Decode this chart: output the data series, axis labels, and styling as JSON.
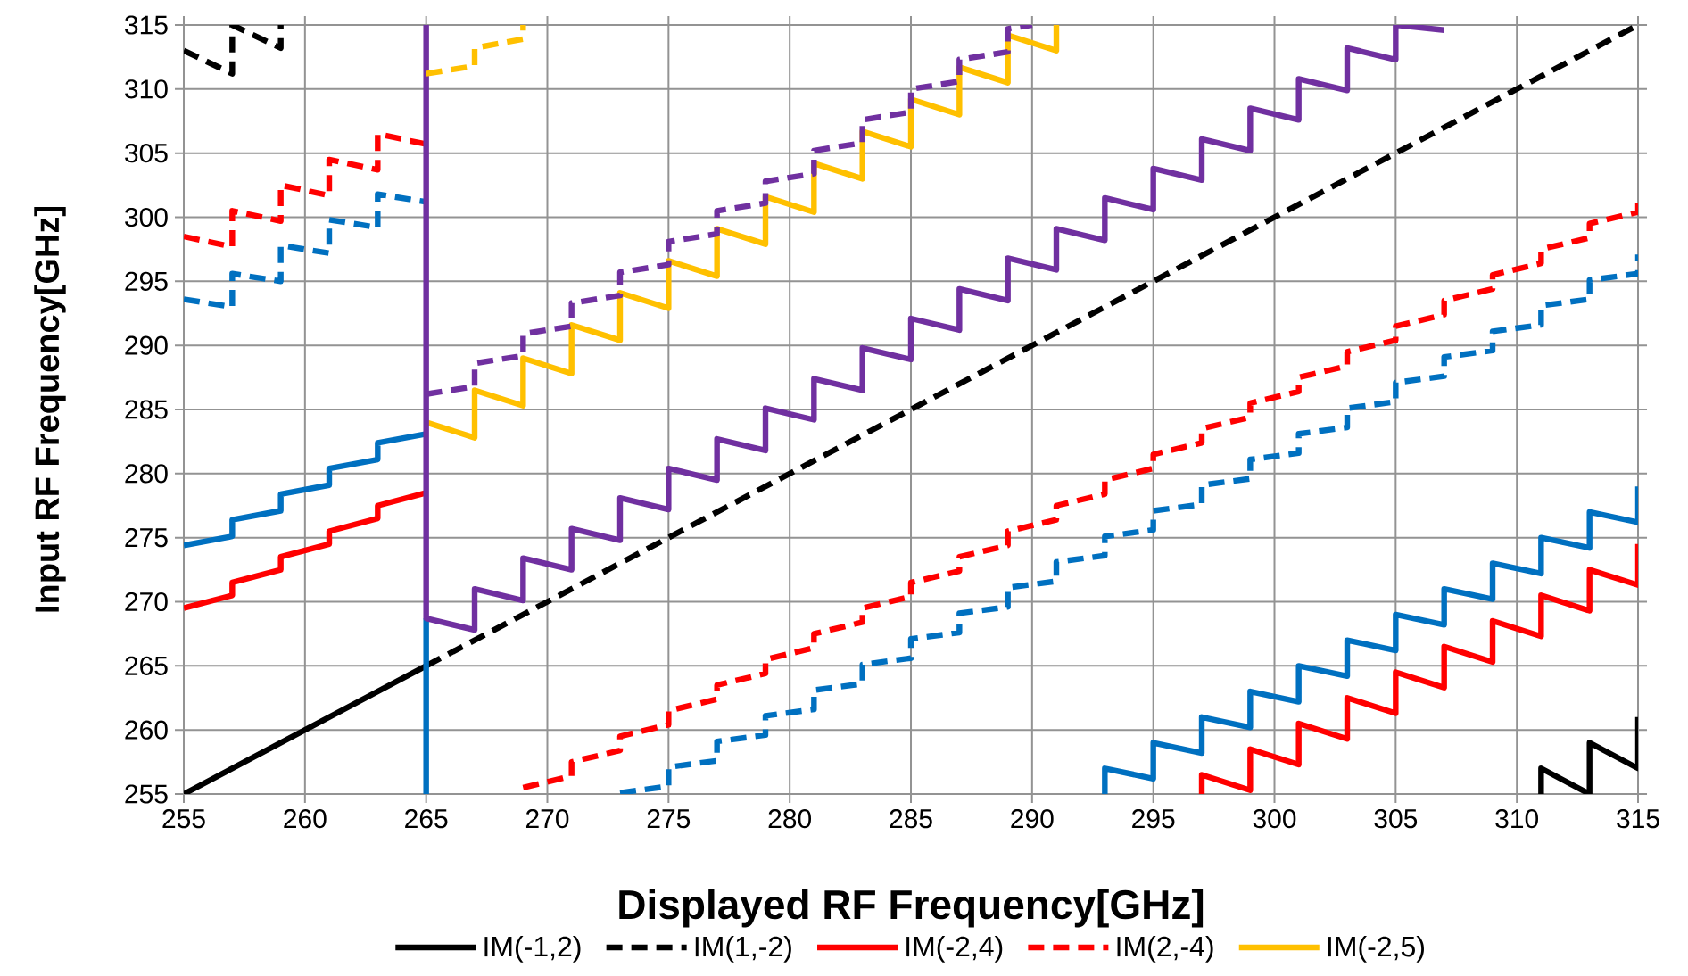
{
  "chart_data": {
    "type": "line",
    "xlabel": "Displayed RF Frequency[GHz]",
    "ylabel": "Input RF Frequency[GHz]",
    "xlim": [
      255,
      315
    ],
    "ylim": [
      255,
      315
    ],
    "xticks": [
      255,
      260,
      265,
      270,
      275,
      280,
      285,
      290,
      295,
      300,
      305,
      310,
      315
    ],
    "yticks": [
      255,
      260,
      265,
      270,
      275,
      280,
      285,
      290,
      295,
      300,
      305,
      310,
      315
    ],
    "grid": true,
    "legend": "bottom",
    "series": [
      {
        "name": "IM(-1,2)",
        "color": "#000000",
        "line_style": "solid",
        "x": [
          255,
          265,
          null,
          311,
          311,
          313,
          313,
          315,
          315
        ],
        "values": [
          255,
          265,
          null,
          255,
          257,
          255,
          259,
          257,
          261
        ]
      },
      {
        "name": "IM(1,-2)",
        "color": "#000000",
        "line_style": "dashed",
        "x": [
          255,
          257,
          257,
          259,
          259,
          null,
          265,
          315
        ],
        "values": [
          313.0,
          311.2,
          315,
          313.2,
          315,
          null,
          265,
          315
        ]
      },
      {
        "name": "IM(-2,4)",
        "color": "#ff0000",
        "line_style": "solid",
        "x": [
          255,
          257,
          257,
          259,
          259,
          261,
          261,
          263,
          263,
          265,
          null,
          297,
          297,
          299,
          299,
          301,
          301,
          303,
          303,
          305,
          305,
          307,
          307,
          309,
          309,
          311,
          311,
          313,
          313,
          315,
          315
        ],
        "values": [
          269.5,
          270.5,
          271.5,
          272.5,
          273.5,
          274.5,
          275.5,
          276.5,
          277.5,
          278.5,
          null,
          255,
          256.5,
          255.3,
          258.5,
          257.3,
          260.5,
          259.3,
          262.5,
          261.3,
          264.5,
          263.3,
          266.5,
          265.3,
          268.5,
          267.3,
          270.5,
          269.3,
          272.5,
          271.3,
          274.5
        ]
      },
      {
        "name": "IM(2,-4)",
        "color": "#ff0000",
        "line_style": "dashed",
        "x": [
          255,
          257,
          257,
          259,
          259,
          261,
          261,
          263,
          263,
          265,
          null,
          269,
          271,
          271,
          273,
          273,
          275,
          275,
          277,
          277,
          279,
          279,
          281,
          281,
          283,
          283,
          285,
          285,
          287,
          287,
          289,
          289,
          291,
          291,
          293,
          293,
          295,
          295,
          297,
          297,
          299,
          299,
          301,
          301,
          303,
          303,
          305,
          305,
          307,
          307,
          309,
          309,
          311,
          311,
          313,
          313,
          315,
          315
        ],
        "values": [
          298.5,
          297.7,
          300.5,
          299.7,
          302.5,
          301.7,
          304.5,
          303.7,
          306.5,
          305.7,
          null,
          255.5,
          256.4,
          257.5,
          258.4,
          259.5,
          260.4,
          261.5,
          262.4,
          263.5,
          264.4,
          265.5,
          266.4,
          267.5,
          268.4,
          269.5,
          270.4,
          271.5,
          272.4,
          273.5,
          274.4,
          275.5,
          276.4,
          277.5,
          278.4,
          279.5,
          280.4,
          281.5,
          282.4,
          283.5,
          284.4,
          285.5,
          286.4,
          287.5,
          288.4,
          289.5,
          290.4,
          291.5,
          292.4,
          293.5,
          294.4,
          295.5,
          296.4,
          297.5,
          298.4,
          299.5,
          300.4,
          301.5
        ]
      },
      {
        "name": "IM(-2,5)",
        "color": "#ffc000",
        "line_style": "solid",
        "x": [
          265,
          267,
          267,
          269,
          269,
          271,
          271,
          273,
          273,
          275,
          275,
          277,
          277,
          279,
          279,
          281,
          281,
          283,
          283,
          285,
          285,
          287,
          287,
          289,
          289,
          291,
          291
        ],
        "values": [
          284.0,
          282.8,
          286.5,
          285.3,
          289.0,
          287.8,
          291.6,
          290.4,
          294.1,
          292.9,
          296.6,
          295.4,
          299.1,
          297.9,
          301.6,
          300.4,
          304.2,
          303.0,
          306.7,
          305.5,
          309.2,
          308.0,
          311.7,
          310.5,
          314.2,
          313.0,
          315
        ]
      },
      {
        "color": "#0070c0",
        "line_style": "solid",
        "x": [
          255,
          257,
          257,
          259,
          259,
          261,
          261,
          263,
          263,
          265,
          null,
          265,
          265,
          null,
          293,
          293,
          295,
          295,
          297,
          297,
          299,
          299,
          301,
          301,
          303,
          303,
          305,
          305,
          307,
          307,
          309,
          309,
          311,
          311,
          313,
          313,
          315,
          315
        ],
        "values": [
          274.4,
          275.1,
          276.4,
          277.1,
          278.4,
          279.1,
          280.4,
          281.1,
          282.4,
          283.1,
          null,
          268.7,
          255,
          null,
          255,
          257,
          256.2,
          259,
          258.2,
          261,
          260.2,
          263,
          262.2,
          265,
          264.2,
          267,
          266.2,
          269,
          268.2,
          271,
          270.2,
          273,
          272.2,
          275,
          274.2,
          277,
          276.2,
          279
        ]
      },
      {
        "color": "#0070c0",
        "line_style": "dashed",
        "x": [
          255,
          257,
          257,
          259,
          259,
          261,
          261,
          263,
          263,
          265,
          null,
          273,
          275,
          275,
          277,
          277,
          279,
          279,
          281,
          281,
          283,
          283,
          285,
          285,
          287,
          287,
          289,
          289,
          291,
          291,
          293,
          293,
          295,
          295,
          297,
          297,
          299,
          299,
          301,
          301,
          303,
          303,
          305,
          305,
          307,
          307,
          309,
          309,
          311,
          311,
          313,
          313,
          315,
          315
        ],
        "values": [
          293.6,
          293.0,
          295.6,
          295.0,
          297.8,
          297.2,
          299.8,
          299.2,
          301.8,
          301.2,
          null,
          255.1,
          255.6,
          257.1,
          257.6,
          259.1,
          259.6,
          261.1,
          261.6,
          263.1,
          263.6,
          265.1,
          265.6,
          267.1,
          267.6,
          269.1,
          269.6,
          271.1,
          271.6,
          273.1,
          273.6,
          275.1,
          275.6,
          277.1,
          277.6,
          279.1,
          279.6,
          281.1,
          281.6,
          283.1,
          283.6,
          285.1,
          285.6,
          287.1,
          287.6,
          289.1,
          289.6,
          291.1,
          291.6,
          293.1,
          293.6,
          295.1,
          295.6,
          297.1
        ]
      },
      {
        "color": "#7030a0",
        "line_style": "solid",
        "x": [
          265,
          265,
          267,
          267,
          269,
          269,
          271,
          271,
          273,
          273,
          275,
          275,
          277,
          277,
          279,
          279,
          281,
          281,
          283,
          283,
          285,
          285,
          287,
          287,
          289,
          289,
          291,
          291,
          293,
          293,
          295,
          295,
          297,
          297,
          299,
          299,
          301,
          301,
          303,
          303,
          305,
          305,
          307
        ],
        "values": [
          315,
          268.7,
          267.8,
          271.0,
          270.1,
          273.4,
          272.5,
          275.7,
          274.8,
          278.1,
          277.2,
          280.4,
          279.5,
          282.7,
          281.8,
          285.1,
          284.2,
          287.4,
          286.5,
          289.8,
          288.9,
          292.1,
          291.2,
          294.4,
          293.5,
          296.8,
          295.9,
          299.1,
          298.2,
          301.5,
          300.6,
          303.8,
          302.9,
          306.1,
          305.2,
          308.5,
          307.6,
          310.8,
          309.9,
          313.2,
          312.3,
          315,
          314.6
        ]
      },
      {
        "color": "#7030a0",
        "line_style": "dashed",
        "x": [
          265,
          267,
          267,
          269,
          269,
          271,
          271,
          273,
          273,
          275,
          275,
          277,
          277,
          279,
          279,
          281,
          281,
          283,
          283,
          285,
          285,
          287,
          287,
          289,
          289,
          290
        ],
        "values": [
          286.2,
          286.8,
          288.6,
          289.2,
          290.9,
          291.5,
          293.3,
          293.9,
          295.7,
          296.3,
          298.1,
          298.7,
          300.5,
          301.1,
          302.8,
          303.4,
          305.2,
          305.8,
          307.6,
          308.2,
          310.0,
          310.6,
          312.3,
          312.9,
          314.7,
          315
        ]
      },
      {
        "color": "#ffc000",
        "line_style": "dashed",
        "x": [
          265,
          267,
          267,
          269,
          269
        ],
        "values": [
          311.2,
          311.8,
          313.2,
          313.9,
          315
        ]
      }
    ]
  }
}
